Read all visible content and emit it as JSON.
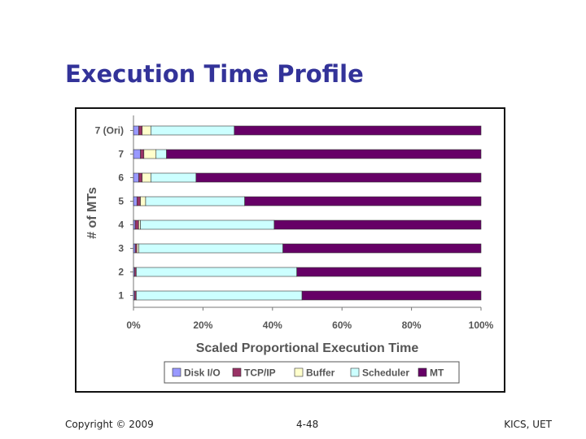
{
  "slide": {
    "title": "Execution Time Profile",
    "footer_left": "Copyright © 2009",
    "footer_center": "4-48",
    "footer_right": "KICS, UET"
  },
  "chart_data": {
    "type": "bar",
    "orientation": "horizontal",
    "stacked": true,
    "categories": [
      "7 (Ori)",
      "7",
      "6",
      "5",
      "4",
      "3",
      "2",
      "1"
    ],
    "xlabel": "Scaled Proportional Execution Time",
    "ylabel": "# of MTs",
    "xlim": [
      0,
      100
    ],
    "xticks": [
      "0%",
      "20%",
      "40%",
      "60%",
      "80%",
      "100%"
    ],
    "legend_position": "bottom",
    "series": [
      {
        "name": "Disk I/O",
        "color": "#9999ff",
        "values": [
          1.5,
          2,
          1.5,
          1,
          0.5,
          0.5,
          0.3,
          0.3
        ]
      },
      {
        "name": "TCP/IP",
        "color": "#993366",
        "values": [
          1,
          1,
          1,
          1,
          1,
          0.5,
          0.5,
          0.5
        ]
      },
      {
        "name": "Buffer",
        "color": "#ffffcc",
        "values": [
          2.5,
          3.5,
          2.5,
          1.5,
          0.5,
          0.5,
          0,
          0
        ]
      },
      {
        "name": "Scheduler",
        "color": "#ccffff",
        "values": [
          24,
          3,
          13,
          28.5,
          38.5,
          41.5,
          46.2,
          47.7
        ]
      },
      {
        "name": "MT",
        "color": "#660066",
        "values": [
          71,
          90.5,
          82,
          68,
          59.5,
          57,
          53,
          51.5
        ]
      }
    ]
  }
}
